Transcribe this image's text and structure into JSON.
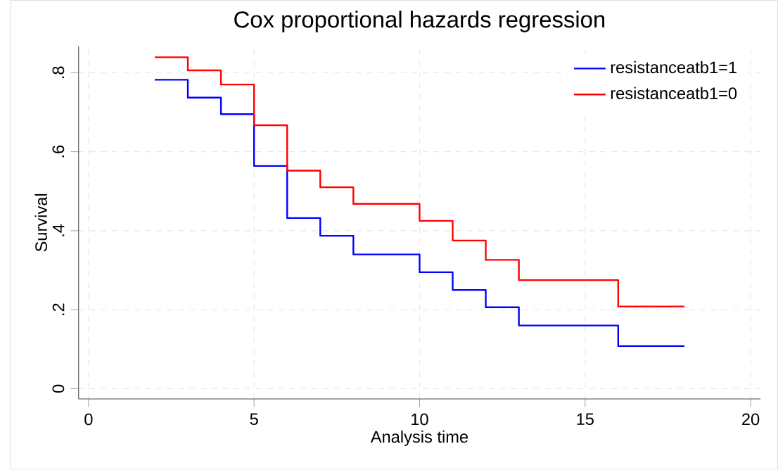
{
  "chart_data": {
    "type": "step",
    "title": "Cox proportional hazards regression",
    "xlabel": "Analysis time",
    "ylabel": "Survival",
    "x": [
      2,
      3,
      4,
      5,
      6,
      7,
      8,
      10,
      11,
      12,
      13,
      16,
      18
    ],
    "series": [
      {
        "name": "resistanceatb1=1",
        "color": "#0000ff",
        "values": [
          0.782,
          0.737,
          0.695,
          0.564,
          0.432,
          0.387,
          0.34,
          0.295,
          0.25,
          0.206,
          0.16,
          0.108,
          0.108
        ]
      },
      {
        "name": "resistanceatb1=0",
        "color": "#ff0000",
        "values": [
          0.839,
          0.806,
          0.77,
          0.667,
          0.552,
          0.51,
          0.468,
          0.425,
          0.375,
          0.326,
          0.275,
          0.208,
          0.208
        ]
      }
    ],
    "xlim": [
      -0.3,
      20.3
    ],
    "ylim": [
      -0.026,
      0.867
    ],
    "xticks": [
      0,
      5,
      10,
      15,
      20
    ],
    "yticks": [
      0,
      {
        "value": 0.2,
        "label": ".2"
      },
      {
        "value": 0.4,
        "label": ".4"
      },
      {
        "value": 0.6,
        "label": ".6"
      },
      {
        "value": 0.8,
        "label": ".8"
      }
    ],
    "grid": true,
    "legend": "top right",
    "line_style": "solid",
    "marker": "none"
  }
}
